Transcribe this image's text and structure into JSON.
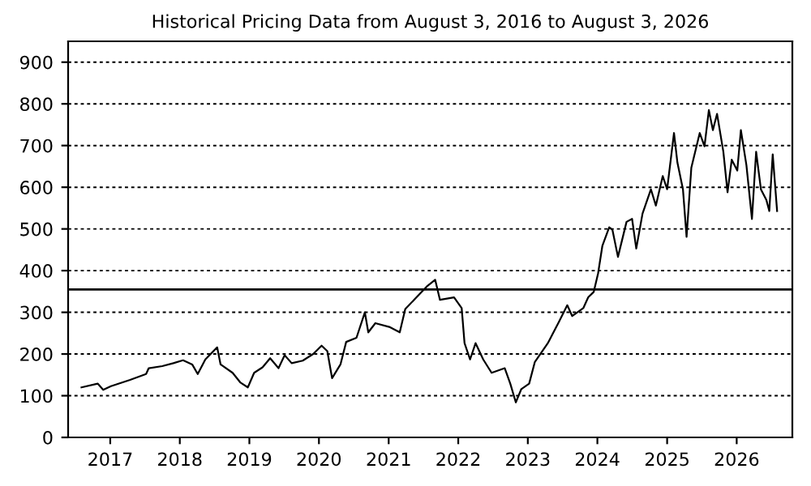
{
  "chart_data": {
    "type": "line",
    "title": "Historical Pricing Data from August 3, 2016 to August 3, 2026",
    "x": [
      "2016-08-03",
      "2016-10-27",
      "2016-11-25",
      "2017-01-05",
      "2017-04-15",
      "2017-07-08",
      "2017-07-22",
      "2017-10-01",
      "2017-11-28",
      "2018-01-18",
      "2018-03-07",
      "2018-04-05",
      "2018-05-15",
      "2018-07-16",
      "2018-08-03",
      "2018-10-05",
      "2018-11-14",
      "2018-12-24",
      "2019-01-26",
      "2019-03-11",
      "2019-04-20",
      "2019-06-03",
      "2019-07-05",
      "2019-08-11",
      "2019-10-08",
      "2019-12-02",
      "2020-01-15",
      "2020-02-14",
      "2020-03-10",
      "2020-04-23",
      "2020-05-23",
      "2020-07-16",
      "2020-08-29",
      "2020-09-16",
      "2020-10-23",
      "2021-01-04",
      "2021-02-28",
      "2021-03-29",
      "2021-05-27",
      "2021-07-20",
      "2021-09-02",
      "2021-09-27",
      "2021-12-10",
      "2022-01-19",
      "2022-02-03",
      "2022-03-04",
      "2022-04-02",
      "2022-05-12",
      "2022-06-25",
      "2022-09-02",
      "2022-10-01",
      "2022-10-30",
      "2022-11-28",
      "2023-01-08",
      "2023-02-07",
      "2023-04-16",
      "2023-06-14",
      "2023-07-27",
      "2023-08-22",
      "2023-10-19",
      "2023-11-14",
      "2023-12-13",
      "2024-01-05",
      "2024-01-27",
      "2024-03-03",
      "2024-03-20",
      "2024-04-18",
      "2024-06-02",
      "2024-07-01",
      "2024-07-23",
      "2024-08-25",
      "2024-10-08",
      "2024-11-03",
      "2024-12-09",
      "2025-01-01",
      "2025-02-06",
      "2025-02-24",
      "2025-03-25",
      "2025-04-13",
      "2025-05-08",
      "2025-06-21",
      "2025-07-16",
      "2025-08-08",
      "2025-08-29",
      "2025-09-20",
      "2025-10-23",
      "2025-11-14",
      "2025-12-06",
      "2026-01-04",
      "2026-01-23",
      "2026-02-21",
      "2026-03-22",
      "2026-04-13",
      "2026-05-08",
      "2026-06-06",
      "2026-06-21",
      "2026-07-09",
      "2026-08-01"
    ],
    "series": [
      {
        "color": "#000000",
        "values": [
          120,
          129,
          114,
          123,
          138,
          152,
          166,
          171,
          178,
          185,
          175,
          152,
          187,
          216,
          175,
          155,
          132,
          120,
          155,
          168,
          190,
          166,
          197,
          178,
          184,
          200,
          220,
          207,
          142,
          175,
          229,
          239,
          300,
          252,
          274,
          265,
          252,
          308,
          336,
          362,
          378,
          330,
          336,
          310,
          226,
          187,
          226,
          187,
          155,
          166,
          129,
          84,
          116,
          129,
          181,
          226,
          278,
          317,
          291,
          310,
          336,
          349,
          394,
          459,
          504,
          498,
          433,
          517,
          524,
          453,
          537,
          595,
          556,
          627,
          595,
          730,
          659,
          595,
          481,
          647,
          730,
          698,
          785,
          737,
          776,
          685,
          588,
          666,
          640,
          737,
          653,
          524,
          685,
          595,
          569,
          543,
          679,
          543
        ]
      }
    ],
    "xlim": [
      "2016-05-25",
      "2026-10-20"
    ],
    "xticks": [
      {
        "value": "2017-01-01",
        "label": "2017"
      },
      {
        "value": "2018-01-01",
        "label": "2018"
      },
      {
        "value": "2019-01-01",
        "label": "2019"
      },
      {
        "value": "2020-01-01",
        "label": "2020"
      },
      {
        "value": "2021-01-01",
        "label": "2021"
      },
      {
        "value": "2022-01-01",
        "label": "2022"
      },
      {
        "value": "2023-01-01",
        "label": "2023"
      },
      {
        "value": "2024-01-01",
        "label": "2024"
      },
      {
        "value": "2025-01-01",
        "label": "2025"
      },
      {
        "value": "2026-01-01",
        "label": "2026"
      }
    ],
    "ylim": [
      0,
      950
    ],
    "yticks": [
      0,
      100,
      200,
      300,
      400,
      500,
      600,
      700,
      800,
      900
    ],
    "grid": "y",
    "ref_lines": [
      {
        "axis": "y",
        "value": 355,
        "color": "#000000",
        "line_style": "solid"
      }
    ],
    "line_style": "solid",
    "marker": "none",
    "legend": false
  }
}
